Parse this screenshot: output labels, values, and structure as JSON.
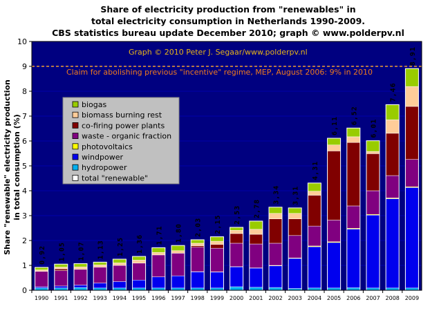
{
  "chart_data": {
    "type": "bar",
    "stacked": true,
    "title_lines": [
      "Share of electricity production from \"renewables\" in",
      "total electricity consumption in Netherlands 1990-2009.",
      "CBS statistics bureau update December 2010; graph © www.polderpv.nl"
    ],
    "ylabel_lines": [
      "Share \"renewable\" electricity production",
      "in total consumption (%)"
    ],
    "ylim": [
      0,
      10
    ],
    "yticks": [
      "0",
      "1",
      "2",
      "3",
      "4",
      "5",
      "6",
      "7",
      "8",
      "9",
      "10"
    ],
    "categories": [
      "1990",
      "1991",
      "1992",
      "1993",
      "1994",
      "1995",
      "1996",
      "1997",
      "1998",
      "1999",
      "2000",
      "2001",
      "2002",
      "2003",
      "2004",
      "2005",
      "2006",
      "2007",
      "2008",
      "2009"
    ],
    "series": [
      {
        "name": "hydropower",
        "color": "#00b0f0",
        "values": [
          0.09,
          0.09,
          0.11,
          0.09,
          0.09,
          0.09,
          0.09,
          0.09,
          0.09,
          0.09,
          0.14,
          0.12,
          0.11,
          0.07,
          0.09,
          0.09,
          0.1,
          0.09,
          0.09,
          0.09
        ]
      },
      {
        "name": "windpower",
        "color": "#0000ee",
        "values": [
          0.05,
          0.08,
          0.1,
          0.2,
          0.26,
          0.32,
          0.45,
          0.49,
          0.65,
          0.64,
          0.8,
          0.77,
          0.87,
          1.21,
          1.66,
          1.83,
          2.36,
          2.93,
          3.59,
          4.04
        ]
      },
      {
        "name": "photovoltaics",
        "color": "#ffff00",
        "values": [
          0.0,
          0.0,
          0.0,
          0.0,
          0.0,
          0.0,
          0.0,
          0.0,
          0.01,
          0.01,
          0.01,
          0.01,
          0.02,
          0.02,
          0.03,
          0.03,
          0.03,
          0.03,
          0.03,
          0.03
        ]
      },
      {
        "name": "waste - organic fraction",
        "color": "#800080",
        "values": [
          0.62,
          0.62,
          0.63,
          0.64,
          0.65,
          0.68,
          0.88,
          0.91,
          0.98,
          0.95,
          0.94,
          0.96,
          0.89,
          0.9,
          0.8,
          0.87,
          0.9,
          0.95,
          0.9,
          1.1
        ]
      },
      {
        "name": "co-firing power plants",
        "color": "#800000",
        "values": [
          0.0,
          0.07,
          0.0,
          0.0,
          0.0,
          0.0,
          0.0,
          0.0,
          0.06,
          0.15,
          0.39,
          0.39,
          0.98,
          0.67,
          1.24,
          2.78,
          2.55,
          1.49,
          1.7,
          2.13
        ]
      },
      {
        "name": "biomass burning rest",
        "color": "#ffcc99",
        "values": [
          0.06,
          0.07,
          0.1,
          0.09,
          0.1,
          0.12,
          0.1,
          0.1,
          0.1,
          0.13,
          0.13,
          0.2,
          0.22,
          0.22,
          0.16,
          0.24,
          0.23,
          0.09,
          0.54,
          0.8
        ]
      },
      {
        "name": "biogas",
        "color": "#99cc00",
        "values": [
          0.1,
          0.12,
          0.13,
          0.11,
          0.15,
          0.15,
          0.19,
          0.21,
          0.14,
          0.18,
          0.12,
          0.33,
          0.25,
          0.22,
          0.33,
          0.27,
          0.35,
          0.43,
          0.61,
          0.72
        ]
      }
    ],
    "totals": [
      0.92,
      1.05,
      1.07,
      1.13,
      1.25,
      1.36,
      1.71,
      1.8,
      2.03,
      2.15,
      2.53,
      2.78,
      3.34,
      3.31,
      4.31,
      6.11,
      6.52,
      6.01,
      7.46,
      8.91
    ],
    "total_labels": [
      "0,92",
      "1,05",
      "1,07",
      "1,13",
      "1,25",
      "1,36",
      "1,71",
      "1,80",
      "2,03",
      "2,15",
      "2,53",
      "2,78",
      "3,34",
      "3,31",
      "4,31",
      "6,11",
      "6,52",
      "6,01",
      "7,46",
      "8,91"
    ],
    "legend": {
      "placement": "upper-left",
      "entries": [
        {
          "label": "biogas",
          "color": "#99cc00"
        },
        {
          "label": "biomass burning rest",
          "color": "#ffcc99"
        },
        {
          "label": "co-firing power plants",
          "color": "#800000"
        },
        {
          "label": "waste - organic fraction",
          "color": "#800080"
        },
        {
          "label": "photovoltaics",
          "color": "#ffff00"
        },
        {
          "label": "windpower",
          "color": "#0000ee"
        },
        {
          "label": "hydropower",
          "color": "#00b0f0"
        },
        {
          "label": "total \"renewable\"",
          "color": "#ffffff"
        }
      ]
    },
    "reference_line": {
      "value": 9,
      "color": "#f0a030"
    },
    "annotations": [
      "Graph © 2010 Peter J. Segaar/www.polderpv.nl",
      "Claim for abolishing previous \"incentive\" regime, MEP, August 2006: 9% in 2010"
    ],
    "colors": {
      "plot_background": "#000080",
      "gridline": "#0000aa",
      "frame": "#000000"
    },
    "grid": false
  }
}
